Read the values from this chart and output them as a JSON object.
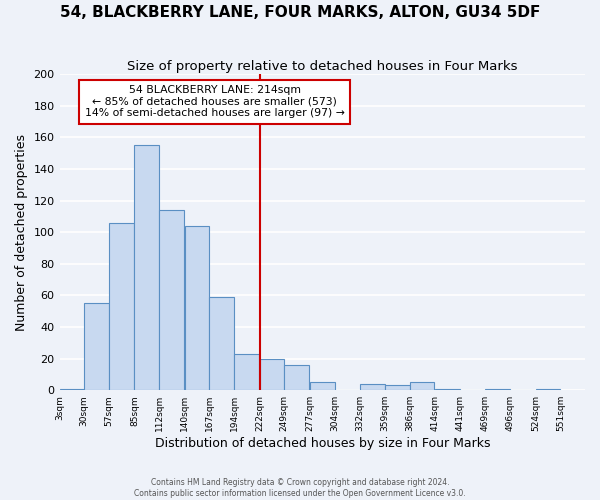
{
  "title1": "54, BLACKBERRY LANE, FOUR MARKS, ALTON, GU34 5DF",
  "title2": "Size of property relative to detached houses in Four Marks",
  "xlabel": "Distribution of detached houses by size in Four Marks",
  "ylabel": "Number of detached properties",
  "bar_left_edges": [
    3,
    30,
    57,
    85,
    112,
    140,
    167,
    194,
    222,
    249,
    277,
    304,
    332,
    359,
    386,
    414,
    441,
    469,
    496,
    524
  ],
  "bar_heights": [
    1,
    55,
    106,
    155,
    114,
    104,
    59,
    23,
    20,
    16,
    5,
    0,
    4,
    3,
    5,
    1,
    0,
    1,
    0,
    1
  ],
  "bin_width": 27,
  "bar_color": "#c8d9f0",
  "bar_edge_color": "#5a8fc3",
  "vline_x": 222,
  "vline_color": "#cc0000",
  "annotation_title": "54 BLACKBERRY LANE: 214sqm",
  "annotation_line1": "← 85% of detached houses are smaller (573)",
  "annotation_line2": "14% of semi-detached houses are larger (97) →",
  "annotation_box_color": "#cc0000",
  "annotation_text_color": "#000000",
  "ylim": [
    0,
    200
  ],
  "yticks": [
    0,
    20,
    40,
    60,
    80,
    100,
    120,
    140,
    160,
    180,
    200
  ],
  "tick_labels": [
    "3sqm",
    "30sqm",
    "57sqm",
    "85sqm",
    "112sqm",
    "140sqm",
    "167sqm",
    "194sqm",
    "222sqm",
    "249sqm",
    "277sqm",
    "304sqm",
    "332sqm",
    "359sqm",
    "386sqm",
    "414sqm",
    "441sqm",
    "469sqm",
    "496sqm",
    "524sqm",
    "551sqm"
  ],
  "xlim_min": 3,
  "xlim_max": 578,
  "footer1": "Contains HM Land Registry data © Crown copyright and database right 2024.",
  "footer2": "Contains public sector information licensed under the Open Government Licence v3.0.",
  "background_color": "#eef2f9",
  "grid_color": "#ffffff",
  "title_fontsize": 11,
  "subtitle_fontsize": 9.5,
  "axis_label_fontsize": 9
}
